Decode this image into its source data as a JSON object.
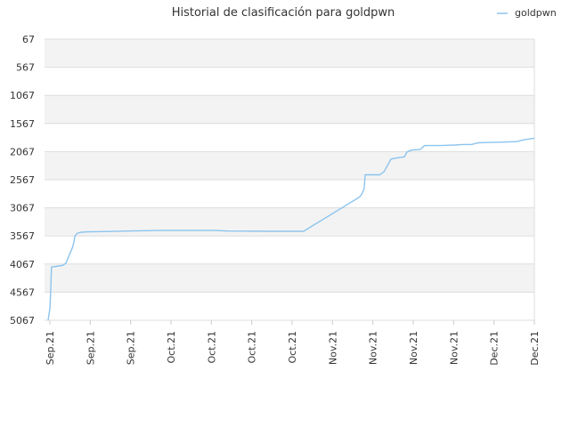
{
  "chart_data": {
    "type": "line",
    "title": "Historial de clasificación para goldpwn",
    "xlabel": "",
    "ylabel": "",
    "y_reversed": true,
    "ylim": [
      67,
      5067
    ],
    "yticks": [
      "67",
      "567",
      "1067",
      "1567",
      "2067",
      "2567",
      "3067",
      "3567",
      "4067",
      "4567",
      "5067"
    ],
    "xticks": [
      "Sep.21",
      "Sep.21",
      "Sep.21",
      "Oct.21",
      "Oct.21",
      "Oct.21",
      "Oct.21",
      "Nov.21",
      "Nov.21",
      "Nov.21",
      "Nov.21",
      "Dec.21",
      "Dec.21"
    ],
    "grid": "horizontal bands",
    "legend_position": "top-right",
    "colors": {
      "line": "#8cc4ee",
      "band": "#f3f3f3",
      "grid": "#dddddd"
    },
    "series": [
      {
        "name": "goldpwn",
        "points": [
          [
            0.0,
            5067
          ],
          [
            0.8,
            4860
          ],
          [
            1.0,
            4700
          ],
          [
            1.2,
            4520
          ],
          [
            1.5,
            4120
          ],
          [
            3.5,
            4110
          ],
          [
            6.5,
            4090
          ],
          [
            8.0,
            4050
          ],
          [
            11.0,
            3760
          ],
          [
            11.5,
            3680
          ],
          [
            12.0,
            3570
          ],
          [
            13.0,
            3520
          ],
          [
            15.0,
            3500
          ],
          [
            18.0,
            3495
          ],
          [
            25.0,
            3490
          ],
          [
            35.0,
            3480
          ],
          [
            50.0,
            3470
          ],
          [
            75.0,
            3470
          ],
          [
            80.0,
            3480
          ],
          [
            100.0,
            3485
          ],
          [
            114.0,
            3485
          ],
          [
            139.0,
            2875
          ],
          [
            140.0,
            2820
          ],
          [
            141.0,
            2730
          ],
          [
            141.5,
            2480
          ],
          [
            148.0,
            2480
          ],
          [
            150.0,
            2420
          ],
          [
            153.0,
            2200
          ],
          [
            157.0,
            2170
          ],
          [
            159.0,
            2160
          ],
          [
            160.0,
            2080
          ],
          [
            162.0,
            2040
          ],
          [
            166.0,
            2030
          ],
          [
            168.0,
            1960
          ],
          [
            175.0,
            1960
          ],
          [
            182.0,
            1950
          ],
          [
            185.0,
            1940
          ],
          [
            189.0,
            1940
          ],
          [
            192.0,
            1910
          ],
          [
            196.0,
            1905
          ],
          [
            203.0,
            1900
          ],
          [
            209.0,
            1890
          ],
          [
            212.0,
            1860
          ],
          [
            215.0,
            1840
          ],
          [
            217.0,
            1830
          ]
        ]
      }
    ],
    "x_range": [
      0,
      217
    ]
  }
}
